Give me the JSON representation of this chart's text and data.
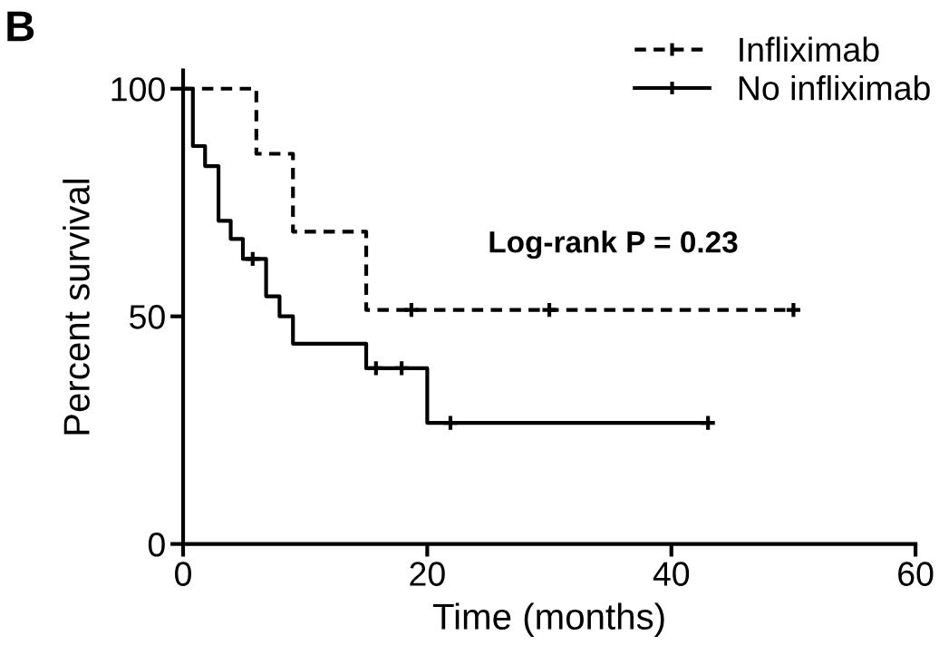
{
  "chart_data": {
    "type": "step",
    "xlabel": "Time (months)",
    "ylabel": "Percent survival",
    "xlim": [
      0,
      60
    ],
    "xticks": [
      0,
      20,
      40,
      60
    ],
    "ylim": [
      0,
      104
    ],
    "yticks": [
      0,
      50,
      100
    ],
    "grid": false,
    "legend": "top right",
    "annotations": [
      "B",
      "Log-rank P = 0.23"
    ],
    "series": [
      {
        "name": "Infliximab",
        "color": "#000000",
        "line_style": "dashed",
        "x": [
          0,
          6,
          9,
          15,
          50
        ],
        "values": [
          100,
          85.7,
          68.6,
          51.4,
          51.4
        ]
      },
      {
        "name": "No infliximab",
        "color": "#000000",
        "line_style": "solid",
        "x": [
          0,
          0.8,
          1.8,
          2.9,
          3.9,
          4.9,
          6.8,
          7.9,
          9,
          15,
          20,
          43
        ],
        "values": [
          100,
          87.4,
          83,
          71,
          67,
          62.6,
          54.4,
          50,
          44,
          38.6,
          26.6,
          26.6
        ]
      },
      {
        "type": "scatter",
        "marker": "cross",
        "color": "#000000",
        "x": [
          18.7,
          30,
          50
        ],
        "values": [
          51.4,
          51.4,
          51.4
        ]
      },
      {
        "type": "scatter",
        "marker": "cross",
        "color": "#000000",
        "x": [
          5.7,
          15.8,
          17.9,
          21.9,
          43
        ],
        "values": [
          62.6,
          38.6,
          38.6,
          26.6,
          26.6
        ]
      }
    ]
  }
}
